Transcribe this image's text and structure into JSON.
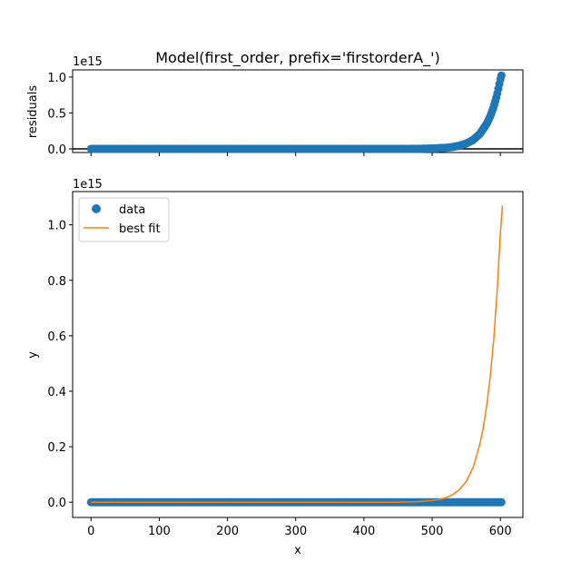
{
  "title": "Model(first_order, prefix='firstorderA_')",
  "chart_data": [
    {
      "type": "scatter",
      "panel": "residuals",
      "ylabel": "residuals",
      "offset_text": "1e15",
      "scale": 1000000000000000.0,
      "xlim": [
        -27,
        633
      ],
      "ylim": [
        -50000000000000.0,
        1100000000000000.0
      ],
      "yticks": [
        0,
        500000000000000.0,
        1000000000000000.0
      ],
      "ytick_labels": [
        "0.0",
        "0.5",
        "1.0"
      ],
      "xticks": [
        0,
        100,
        200,
        300,
        400,
        500,
        600
      ],
      "zero_line": 0,
      "grid": false,
      "series": [
        {
          "color": "#1f77b4",
          "x": [
            0,
            100,
            200,
            300,
            400,
            450,
            480,
            500,
            520,
            530,
            540,
            550,
            560,
            570,
            580,
            585,
            590,
            595,
            600,
            602
          ],
          "y": [
            0,
            0,
            0,
            0,
            0,
            0,
            2000000000000.0,
            6000000000000.0,
            16000000000000.0,
            27000000000000.0,
            45000000000000.0,
            75000000000000.0,
            125000000000000.0,
            210000000000000.0,
            350000000000000.0,
            450000000000000.0,
            580000000000000.0,
            750000000000000.0,
            970000000000000.0,
            1040000000000000.0
          ]
        }
      ]
    },
    {
      "type": "line",
      "panel": "fit",
      "xlabel": "x",
      "ylabel": "y",
      "offset_text": "1e15",
      "scale": 1000000000000000.0,
      "xlim": [
        -27,
        633
      ],
      "ylim": [
        -55000000000000.0,
        1120000000000000.0
      ],
      "xticks": [
        0,
        100,
        200,
        300,
        400,
        500,
        600
      ],
      "xtick_labels": [
        "0",
        "100",
        "200",
        "300",
        "400",
        "500",
        "600"
      ],
      "yticks": [
        0,
        200000000000000.0,
        400000000000000.0,
        600000000000000.0,
        800000000000000.0,
        1000000000000000.0
      ],
      "ytick_labels": [
        "0.0",
        "0.2",
        "0.4",
        "0.6",
        "0.8",
        "1.0"
      ],
      "legend": "top-left",
      "grid": false,
      "series": [
        {
          "name": "data",
          "style": "marker",
          "color": "#1f77b4",
          "x": [
            0,
            100,
            200,
            300,
            400,
            500,
            550,
            602
          ],
          "y": [
            0,
            0,
            0,
            0,
            0,
            0,
            0,
            0
          ]
        },
        {
          "name": "best fit",
          "style": "line",
          "color": "#ff7f0e",
          "x": [
            0,
            100,
            200,
            300,
            400,
            450,
            480,
            500,
            510,
            520,
            530,
            540,
            550,
            560,
            570,
            575,
            580,
            585,
            590,
            595,
            600,
            603
          ],
          "y": [
            0,
            0,
            0,
            0,
            0,
            0,
            2000000000000.0,
            6000000000000.0,
            10000000000000.0,
            16000000000000.0,
            27000000000000.0,
            45000000000000.0,
            75000000000000.0,
            125000000000000.0,
            210000000000000.0,
            270000000000000.0,
            350000000000000.0,
            450000000000000.0,
            580000000000000.0,
            750000000000000.0,
            970000000000000.0,
            1070000000000000.0
          ]
        }
      ]
    }
  ]
}
